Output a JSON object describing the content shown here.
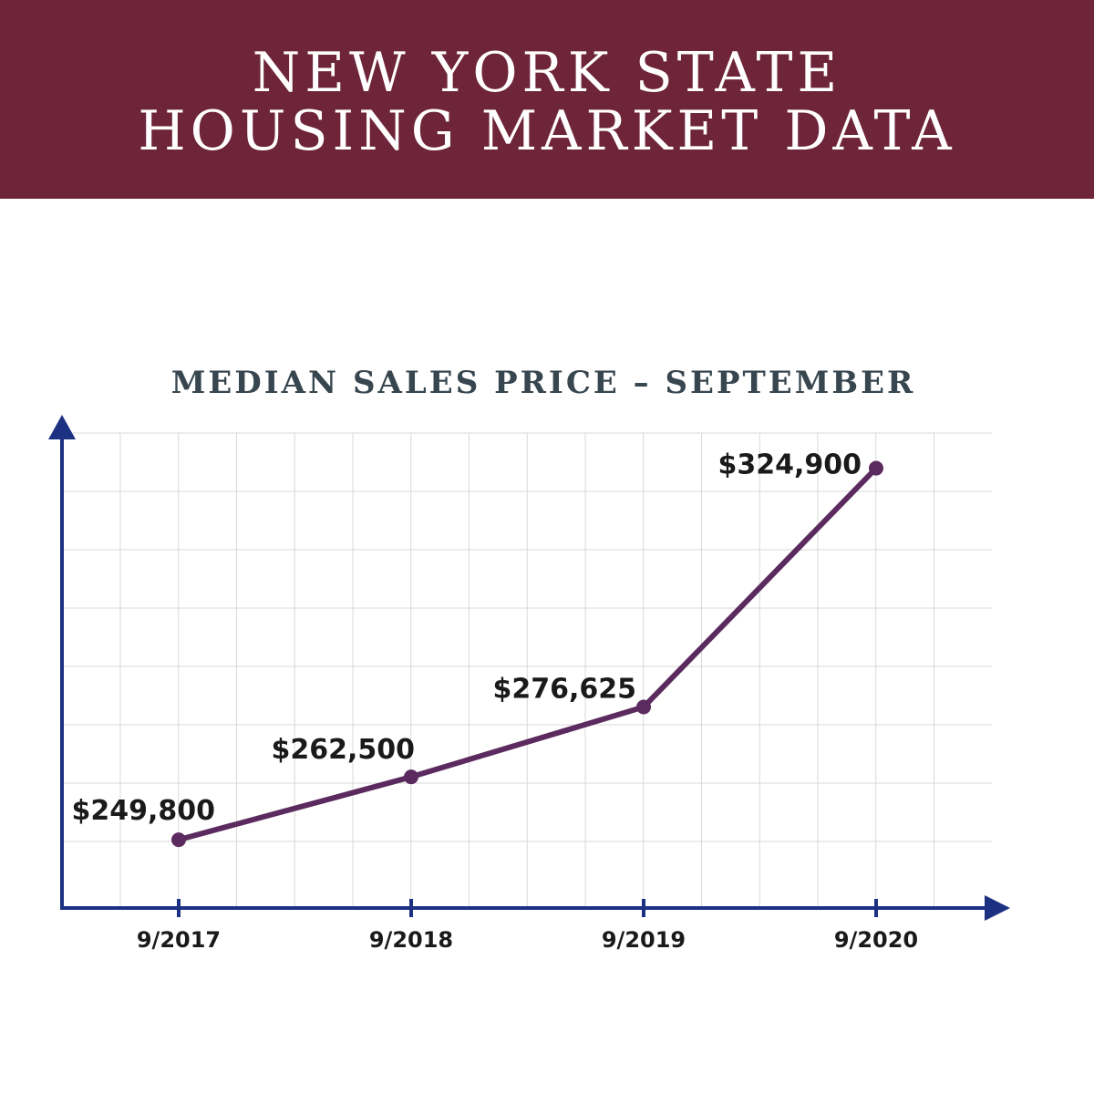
{
  "header": {
    "title_lines": [
      "NEW YORK STATE",
      "HOUSING MARKET DATA"
    ]
  },
  "chart_data": {
    "type": "line",
    "title": "MEDIAN SALES PRICE – SEPTEMBER",
    "categories": [
      "9/2017",
      "9/2018",
      "9/2019",
      "9/2020"
    ],
    "values": [
      249800,
      262500,
      276625,
      324900
    ],
    "value_labels": [
      "$249,800",
      "$262,500",
      "$276,625",
      "$324,900"
    ],
    "color": "#5b2a5e",
    "ylim": [
      236000,
      332000
    ]
  }
}
